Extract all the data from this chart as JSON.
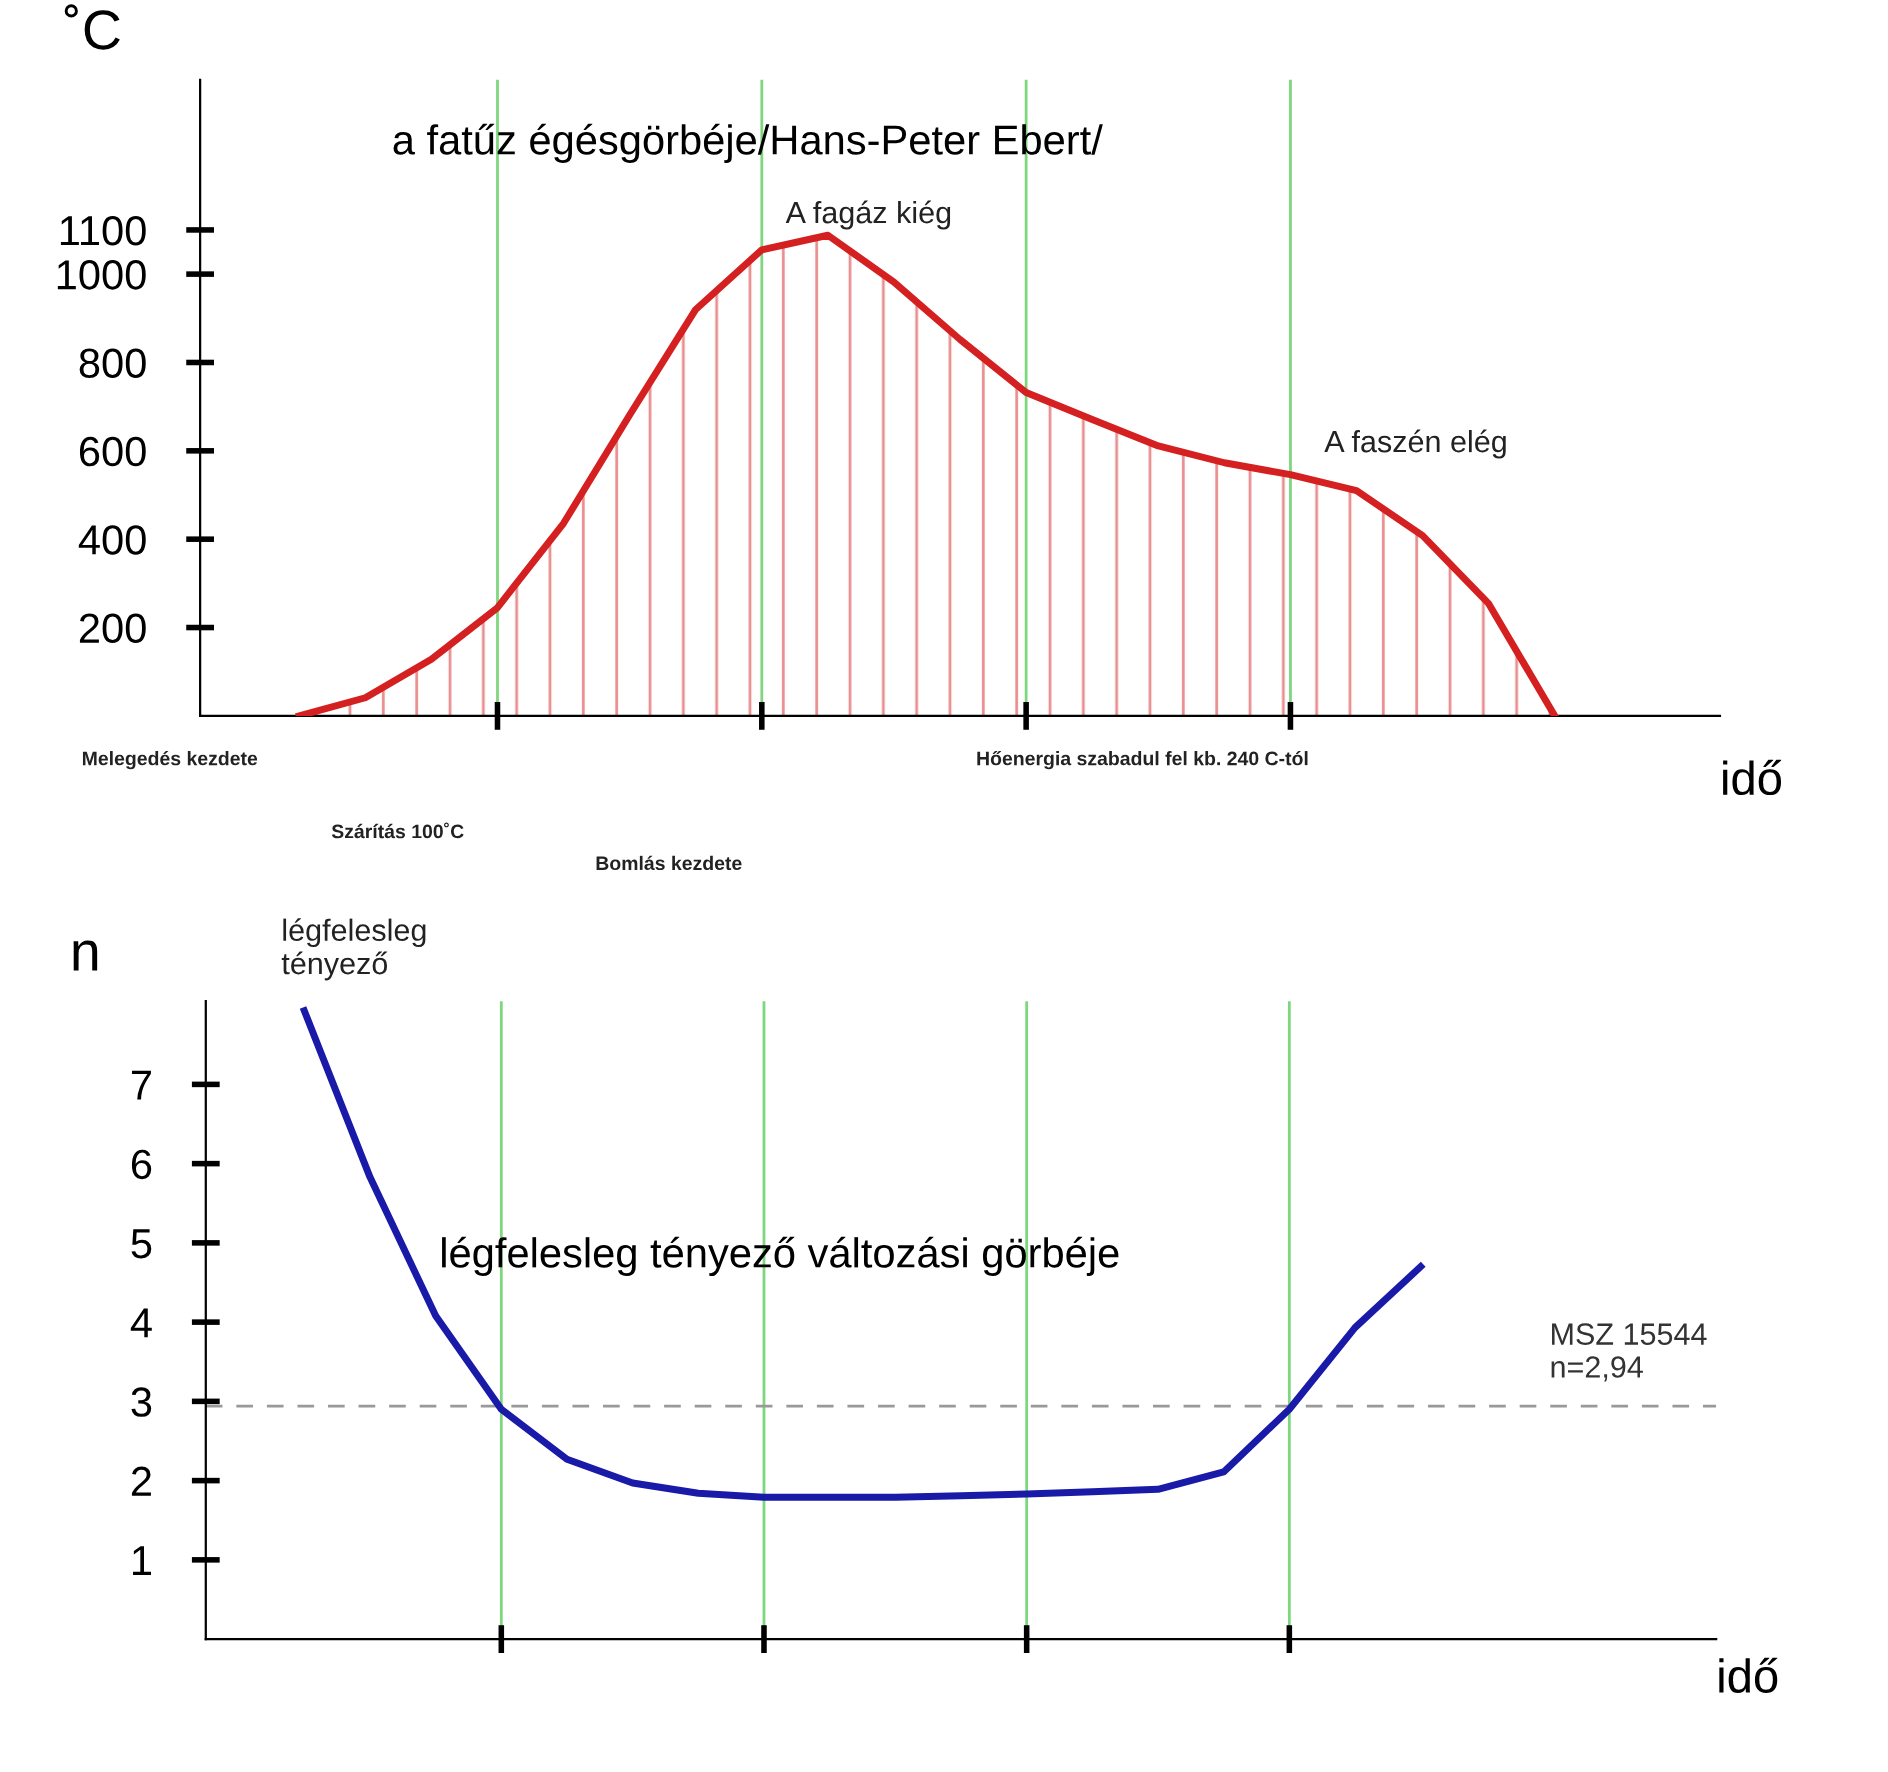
{
  "chart_data": [
    {
      "type": "area",
      "title": "a fatűz égésgörbéje/Hans-Peter Ebert/",
      "ylabel": "˚C",
      "xlabel": "idő",
      "categories": [
        null,
        null,
        null,
        null,
        null,
        null,
        null,
        null,
        null,
        null,
        null,
        null,
        null,
        null,
        null,
        null,
        null,
        null,
        null,
        null
      ],
      "series": [
        {
          "color": "#d42020",
          "values": [
            0,
            41,
            128,
            245,
            436,
            681,
            920,
            1055,
            1088,
            982,
            852,
            732,
            671,
            611,
            573,
            546,
            510,
            408,
            254,
            0
          ]
        }
      ],
      "ylim": [
        0,
        1440
      ],
      "yticks": [
        200,
        400,
        600,
        800,
        1000,
        1100
      ],
      "tick_labels": "y",
      "grid": "x",
      "legend": false,
      "marker": "none",
      "line_style": "solid",
      "annotations": [
        "A fagáz kiég",
        "A faszén elég",
        "Melegedés kezdete",
        "Szárítás 100˚C",
        "Bomlás kezdete",
        "Hőenergia szabadul fel kb. 240 C-tól"
      ]
    },
    {
      "type": "line",
      "title": "légfelesleg tényező változási görbéje",
      "ylabel": "n",
      "xlabel": "idő",
      "categories": [
        null,
        null,
        null,
        null,
        null,
        null,
        null,
        null,
        null,
        null,
        null,
        null,
        null,
        null,
        null,
        null,
        null,
        null
      ],
      "series": [
        {
          "color": "#1a1aa8",
          "values": [
            7.93,
            5.83,
            4.08,
            2.9,
            2.27,
            1.97,
            1.84,
            1.79,
            1.79,
            1.79,
            1.81,
            1.83,
            1.86,
            1.89,
            2.11,
            2.9,
            3.93,
            4.7
          ]
        }
      ],
      "ylim": [
        0,
        8.05
      ],
      "yticks": [
        1,
        2,
        3,
        4,
        5,
        6,
        7
      ],
      "tick_labels": "y",
      "grid": "x",
      "legend": false,
      "marker": "none",
      "line_style": "solid",
      "ref_lines": [
        {
          "axis": "y",
          "value": 2.94,
          "label": "MSZ 15544\nn=2,94",
          "color": "#999999",
          "line_style": "dashed"
        }
      ],
      "annotations": [
        "légfelesleg\ntényező"
      ]
    }
  ]
}
